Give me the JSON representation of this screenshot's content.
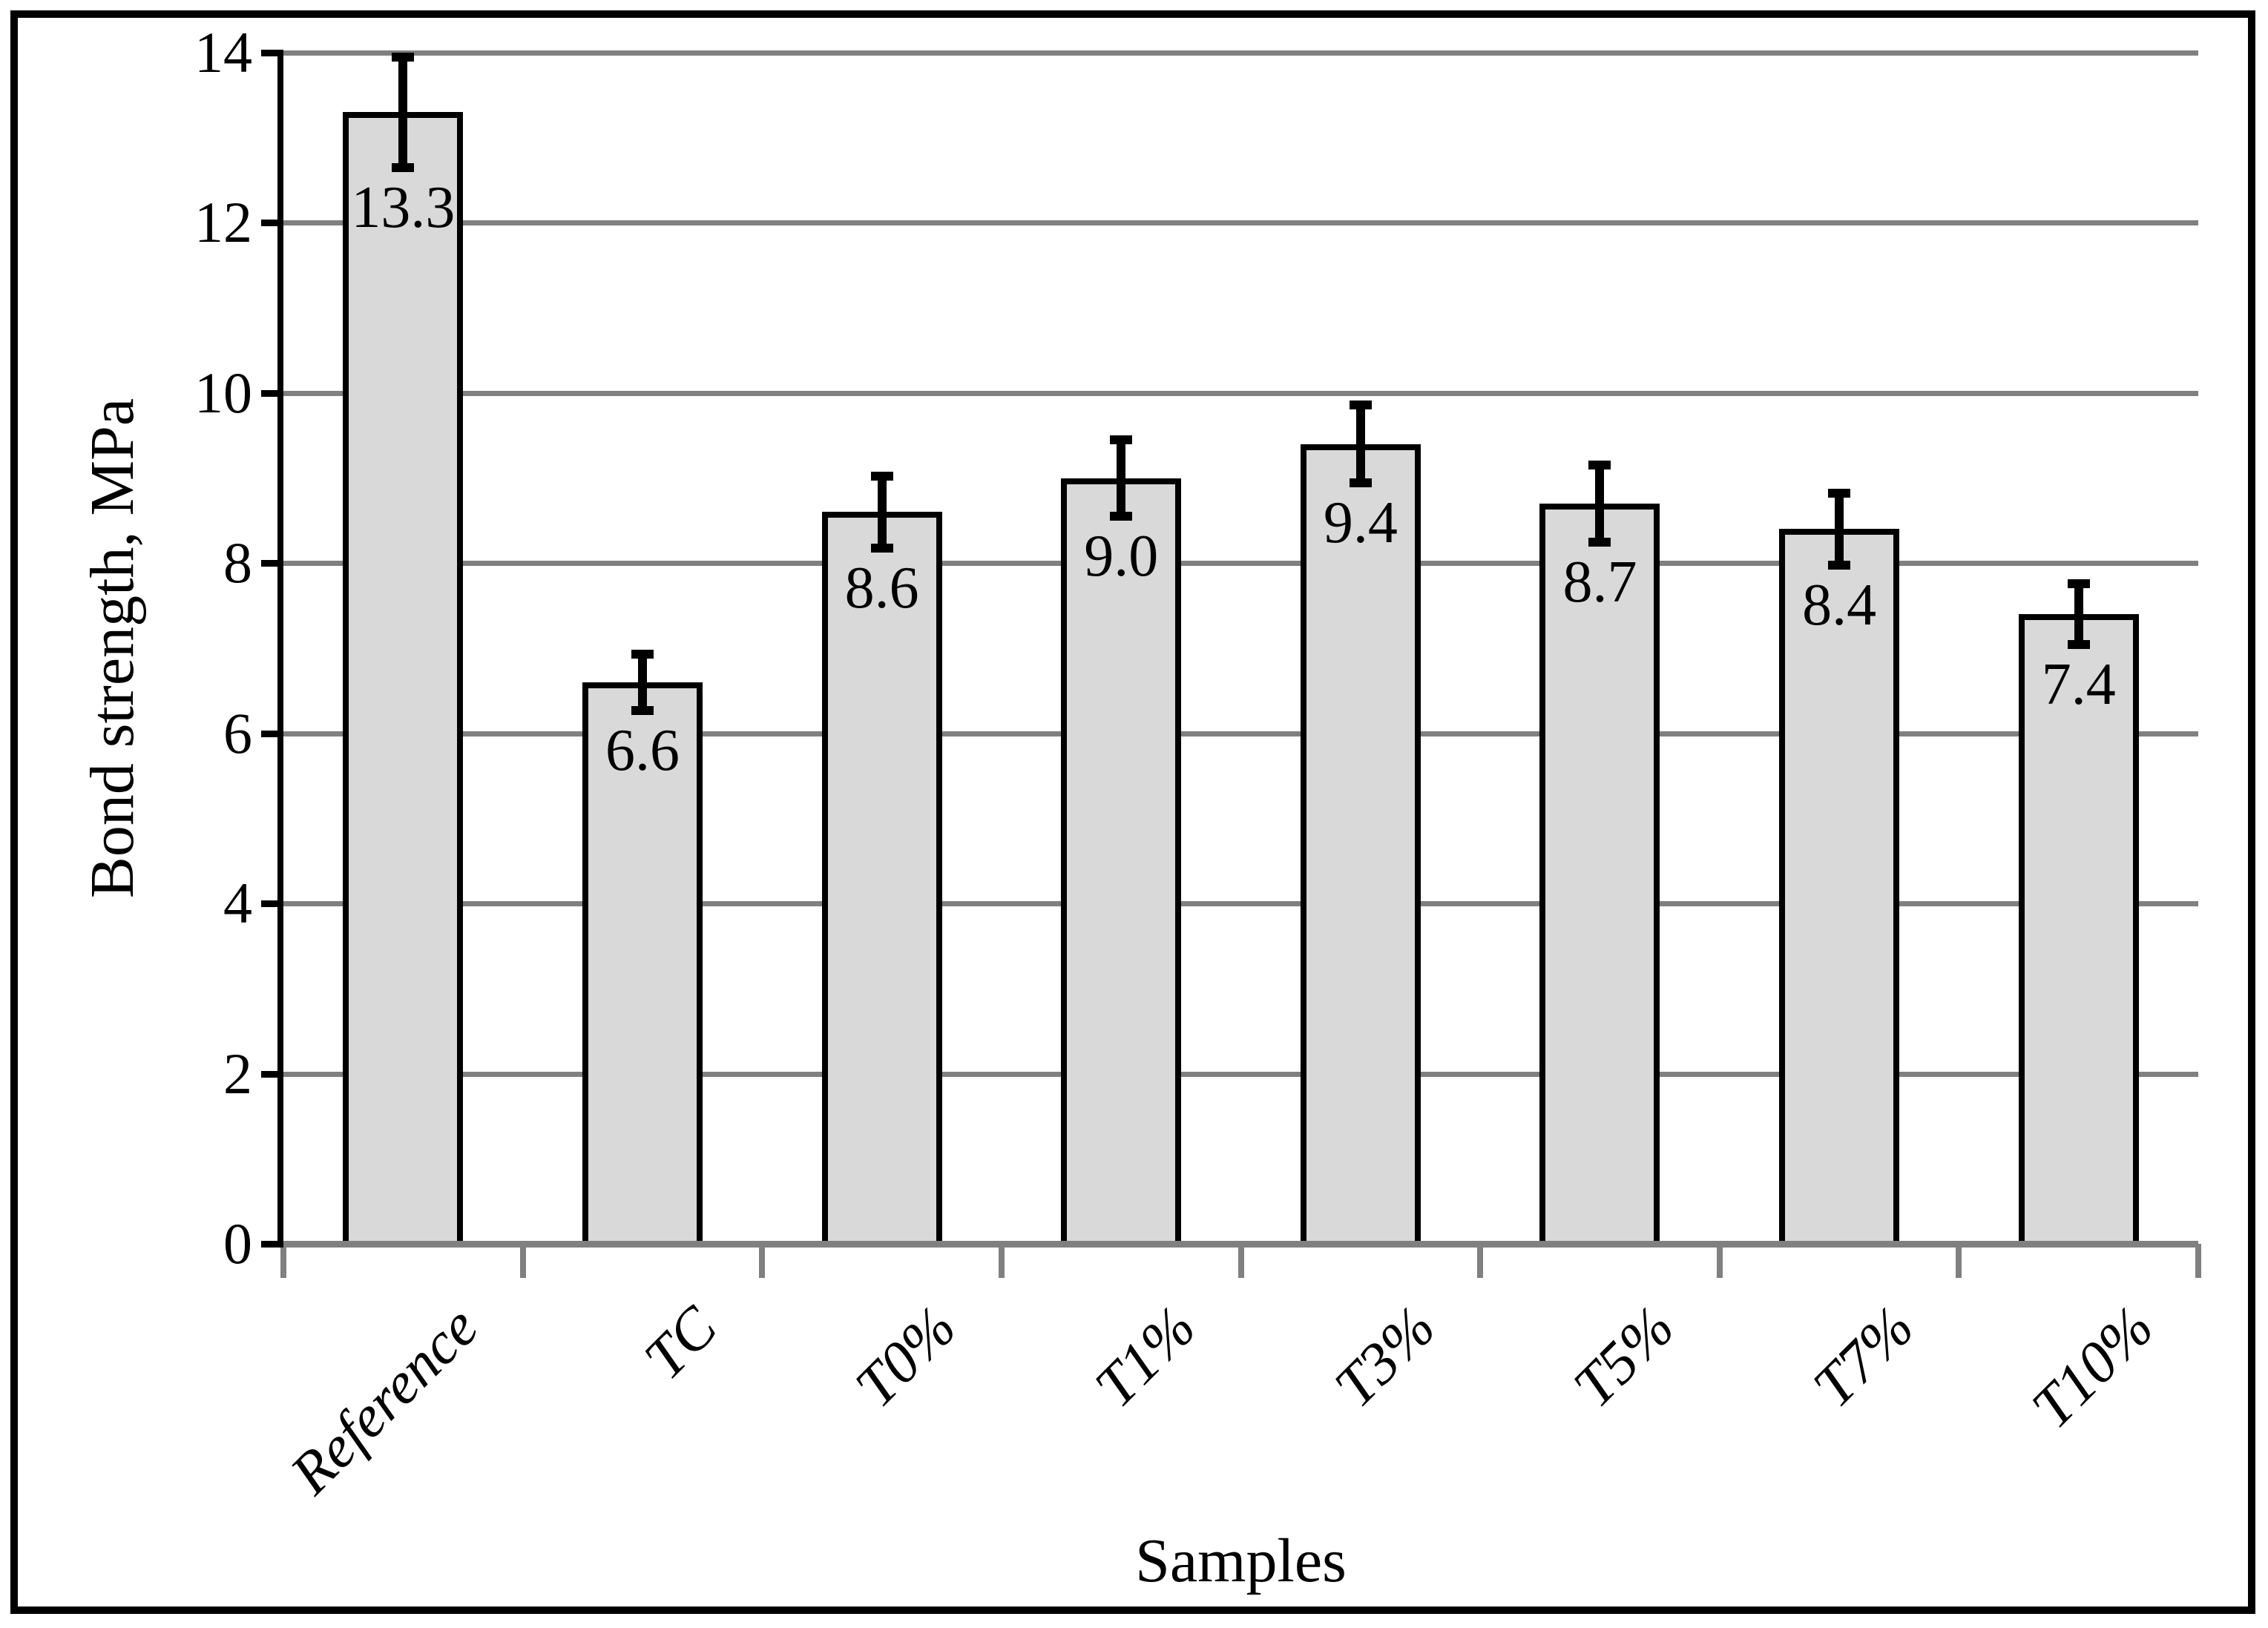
{
  "figure": {
    "background_color": "#ffffff",
    "frame_color": "#000000"
  },
  "chart_data": {
    "type": "bar",
    "title": "",
    "xlabel": "Samples",
    "ylabel": "Bond strength, MPa",
    "categories": [
      "Reference",
      "TC",
      "T0%",
      "T1%",
      "T3%",
      "T5%",
      "T7%",
      "T10%"
    ],
    "values": [
      13.3,
      6.6,
      8.6,
      9.0,
      9.4,
      8.7,
      8.4,
      7.4
    ],
    "value_labels": [
      "13.3",
      "6.6",
      "8.6",
      "9.0",
      "9.4",
      "8.7",
      "8.4",
      "7.4"
    ],
    "error_bars": [
      0.65,
      0.33,
      0.42,
      0.45,
      0.46,
      0.45,
      0.42,
      0.36
    ],
    "ylim": [
      0,
      14
    ],
    "yticks": [
      0,
      2,
      4,
      6,
      8,
      10,
      12,
      14
    ],
    "grid": "horizontal",
    "legend_position": "none",
    "bar_fill_color": "#d9d9d9",
    "bar_border_color": "#000000",
    "gridline_color": "#808080",
    "baseline_color": "#808080",
    "axis_line_color": "#000000",
    "error_bar_color": "#000000",
    "label_color": "#000000"
  }
}
